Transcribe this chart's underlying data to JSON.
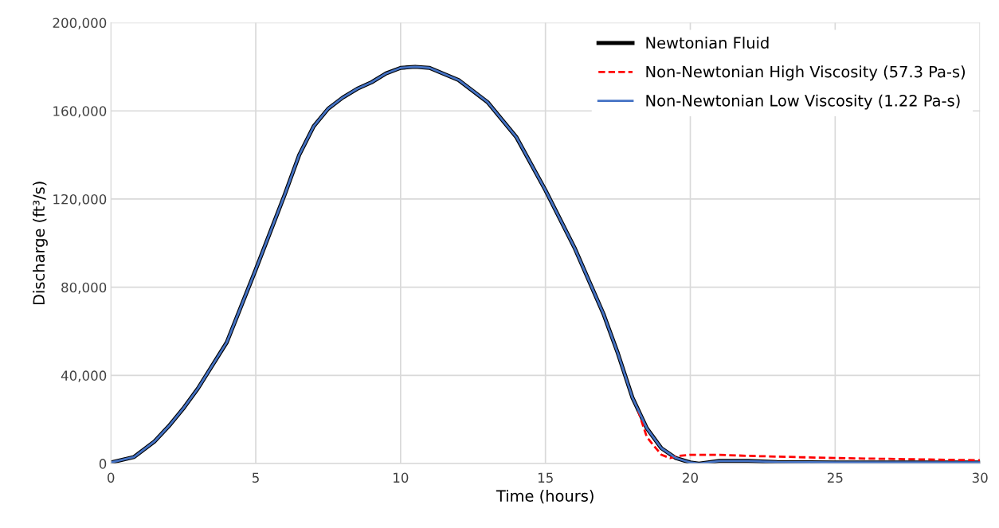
{
  "chart_data": {
    "type": "line",
    "xlabel": "Time (hours)",
    "ylabel": "Discharge (ft³/s)",
    "xlim": [
      0,
      30
    ],
    "xticks": [
      0,
      5,
      10,
      15,
      20,
      25,
      30
    ],
    "ylim": [
      0,
      200000
    ],
    "yticks": [
      {
        "value": 0,
        "label": "0"
      },
      {
        "value": 40000,
        "label": "40,000"
      },
      {
        "value": 80000,
        "label": "80,000"
      },
      {
        "value": 120000,
        "label": "120,000"
      },
      {
        "value": 160000,
        "label": "160,000"
      },
      {
        "value": 200000,
        "label": "200,000"
      }
    ],
    "grid": true,
    "legend": "top right",
    "marker": "none",
    "series": [
      {
        "name": "Newtonian Fluid",
        "color": "#000000",
        "line_style": "solid",
        "x": [
          0,
          0.8,
          1.5,
          2,
          2.5,
          3,
          4,
          5,
          6,
          6.5,
          7,
          7.5,
          8,
          8.5,
          9,
          9.5,
          10,
          10.5,
          11,
          12,
          13,
          14,
          15,
          16,
          17,
          17.5,
          18,
          18.5,
          19,
          19.5,
          20,
          20.3,
          21,
          22,
          23,
          25,
          30
        ],
        "values": [
          500,
          3000,
          10000,
          17000,
          25000,
          34000,
          55000,
          88000,
          122000,
          140000,
          153000,
          161000,
          166000,
          170000,
          173000,
          177000,
          179500,
          180000,
          179500,
          174000,
          164000,
          148000,
          124000,
          98000,
          68000,
          50000,
          30000,
          16000,
          7000,
          2500,
          500,
          0,
          1200,
          1200,
          700,
          500,
          500
        ]
      },
      {
        "name": "Non-Newtonian High Viscosity (57.3 Pa-s)",
        "color": "#ff0000",
        "line_style": "dashed",
        "x": [
          18.2,
          18.5,
          19,
          19.3,
          19.6,
          20,
          21,
          22,
          25,
          30
        ],
        "values": [
          24000,
          12000,
          4000,
          2500,
          3500,
          4000,
          4000,
          3500,
          2500,
          1500
        ]
      },
      {
        "name": "Non-Newtonian Low Viscosity (1.22 Pa-s)",
        "color": "#4472c4",
        "line_style": "solid",
        "x": [
          0,
          0.8,
          1.5,
          2,
          2.5,
          3,
          4,
          5,
          6,
          6.5,
          7,
          7.5,
          8,
          8.5,
          9,
          9.5,
          10,
          10.5,
          11,
          12,
          13,
          14,
          15,
          16,
          17,
          17.5,
          18,
          18.5,
          19,
          19.5,
          20,
          20.3,
          21,
          22,
          23,
          25,
          30
        ],
        "values": [
          500,
          3000,
          10000,
          17000,
          25000,
          34000,
          55000,
          88000,
          122000,
          140000,
          153000,
          161000,
          166000,
          170000,
          173000,
          177000,
          179500,
          180000,
          179500,
          174000,
          164000,
          148000,
          124000,
          98000,
          68000,
          50000,
          30000,
          16000,
          7000,
          2500,
          500,
          0,
          1200,
          1200,
          700,
          500,
          500
        ]
      }
    ]
  }
}
